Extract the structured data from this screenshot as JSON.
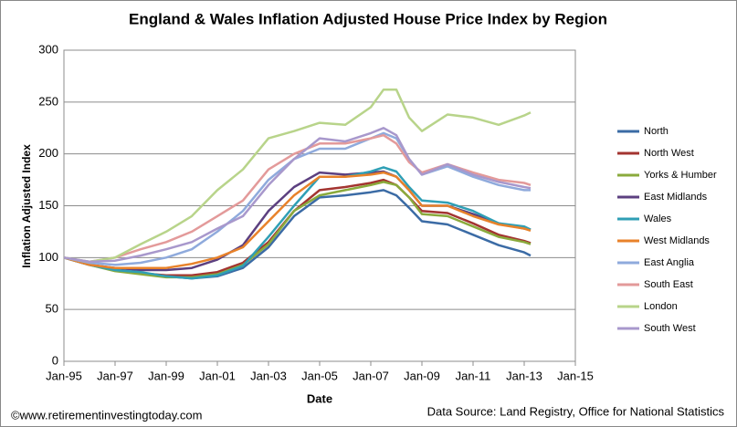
{
  "chart_data": {
    "type": "line",
    "title": "England & Wales Inflation Adjusted House Price Index by Region",
    "x_label": "Date",
    "y_label": "Inflation Adjusted Index",
    "footer_left": "©www.retirementinvestingtoday.com",
    "footer_right": "Data Source: Land Registry, Office for National Statistics",
    "x": [
      "Jan-95",
      "Jan-96",
      "Jan-97",
      "Jan-98",
      "Jan-99",
      "Jan-00",
      "Jan-01",
      "Jan-02",
      "Jan-03",
      "Jan-04",
      "Jan-05",
      "Jan-06",
      "Jan-07",
      "Jul-07",
      "Jan-08",
      "Jul-08",
      "Jan-09",
      "Jan-10",
      "Jan-11",
      "Jan-12",
      "Jan-13",
      "Apr-13"
    ],
    "xlim": [
      "Jan-95",
      "Jan-15"
    ],
    "xticks": [
      "Jan-95",
      "Jan-97",
      "Jan-99",
      "Jan-01",
      "Jan-03",
      "Jan-05",
      "Jan-07",
      "Jan-09",
      "Jan-11",
      "Jan-13",
      "Jan-15"
    ],
    "ylim": [
      0,
      300
    ],
    "yticks": [
      0,
      50,
      100,
      150,
      200,
      250,
      300
    ],
    "grid": true,
    "series": [
      {
        "name": "North",
        "color": "#3b6ba5",
        "values": [
          100,
          93,
          88,
          85,
          82,
          80,
          82,
          90,
          110,
          140,
          158,
          160,
          163,
          165,
          160,
          148,
          135,
          132,
          122,
          112,
          105,
          102
        ]
      },
      {
        "name": "North West",
        "color": "#a33430",
        "values": [
          100,
          93,
          88,
          85,
          83,
          83,
          86,
          95,
          115,
          145,
          165,
          168,
          172,
          175,
          170,
          158,
          145,
          143,
          133,
          122,
          116,
          114
        ]
      },
      {
        "name": "Yorks & Humber",
        "color": "#8aaa3c",
        "values": [
          100,
          93,
          87,
          84,
          81,
          81,
          84,
          93,
          113,
          145,
          160,
          165,
          170,
          173,
          170,
          158,
          142,
          140,
          130,
          120,
          115,
          113
        ]
      },
      {
        "name": "East Midlands",
        "color": "#5c4080",
        "values": [
          100,
          93,
          90,
          88,
          88,
          90,
          98,
          112,
          145,
          168,
          182,
          180,
          182,
          183,
          178,
          165,
          150,
          150,
          142,
          133,
          128,
          127
        ]
      },
      {
        "name": "Wales",
        "color": "#2f9fb5",
        "values": [
          100,
          93,
          88,
          86,
          82,
          80,
          83,
          92,
          120,
          150,
          178,
          178,
          183,
          187,
          183,
          168,
          155,
          153,
          145,
          133,
          130,
          127
        ]
      },
      {
        "name": "West Midlands",
        "color": "#e8822a",
        "values": [
          100,
          93,
          90,
          90,
          90,
          94,
          100,
          110,
          135,
          160,
          178,
          178,
          180,
          182,
          178,
          165,
          150,
          150,
          140,
          132,
          128,
          126
        ]
      },
      {
        "name": "East Anglia",
        "color": "#8faadc",
        "values": [
          100,
          95,
          93,
          95,
          100,
          108,
          125,
          145,
          175,
          195,
          205,
          205,
          215,
          220,
          215,
          195,
          180,
          188,
          178,
          170,
          165,
          165
        ]
      },
      {
        "name": "South East",
        "color": "#e39a9a",
        "values": [
          100,
          96,
          100,
          108,
          115,
          125,
          140,
          155,
          185,
          200,
          210,
          210,
          215,
          218,
          210,
          192,
          182,
          190,
          182,
          175,
          172,
          170
        ]
      },
      {
        "name": "London",
        "color": "#b8d48a",
        "values": [
          100,
          96,
          100,
          113,
          125,
          140,
          165,
          185,
          215,
          222,
          230,
          228,
          245,
          262,
          262,
          235,
          222,
          238,
          235,
          228,
          237,
          240
        ]
      },
      {
        "name": "South West",
        "color": "#a898cc",
        "values": [
          100,
          96,
          97,
          102,
          108,
          115,
          128,
          140,
          170,
          195,
          215,
          212,
          220,
          225,
          218,
          195,
          180,
          190,
          180,
          173,
          168,
          167
        ]
      }
    ]
  }
}
